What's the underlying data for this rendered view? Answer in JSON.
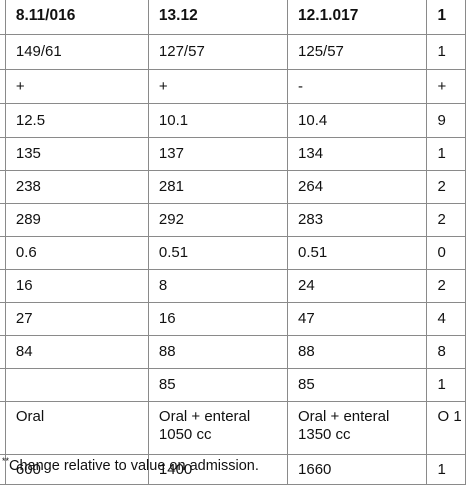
{
  "table": {
    "header": [
      "8.11/016",
      "13.12",
      "12.1.017",
      "1"
    ],
    "rows": [
      [
        "149/61",
        "127/57",
        "125/57",
        "1"
      ],
      [
        "+",
        "+",
        "-",
        "+"
      ],
      [
        "12.5",
        "10.1",
        "10.4",
        "9"
      ],
      [
        "135",
        "137",
        "134",
        "1"
      ],
      [
        "238",
        "281",
        "264",
        "2"
      ],
      [
        "289",
        "292",
        "283",
        "2"
      ],
      [
        "0.6",
        "0.51",
        "0.51",
        "0"
      ],
      [
        "16",
        "8",
        "24",
        "2"
      ],
      [
        "27",
        "16",
        "47",
        "4"
      ],
      [
        "84",
        "88",
        "88",
        "8"
      ],
      [
        "",
        "85",
        "85",
        "1"
      ],
      [
        "Oral",
        "Oral + enteral 1050 cc",
        "Oral + enteral 1350 cc",
        "O 1"
      ],
      [
        "600",
        "1400",
        "1660",
        "1"
      ]
    ]
  },
  "footnote": {
    "marker": "**",
    "text": "Change relative to value on admission."
  }
}
